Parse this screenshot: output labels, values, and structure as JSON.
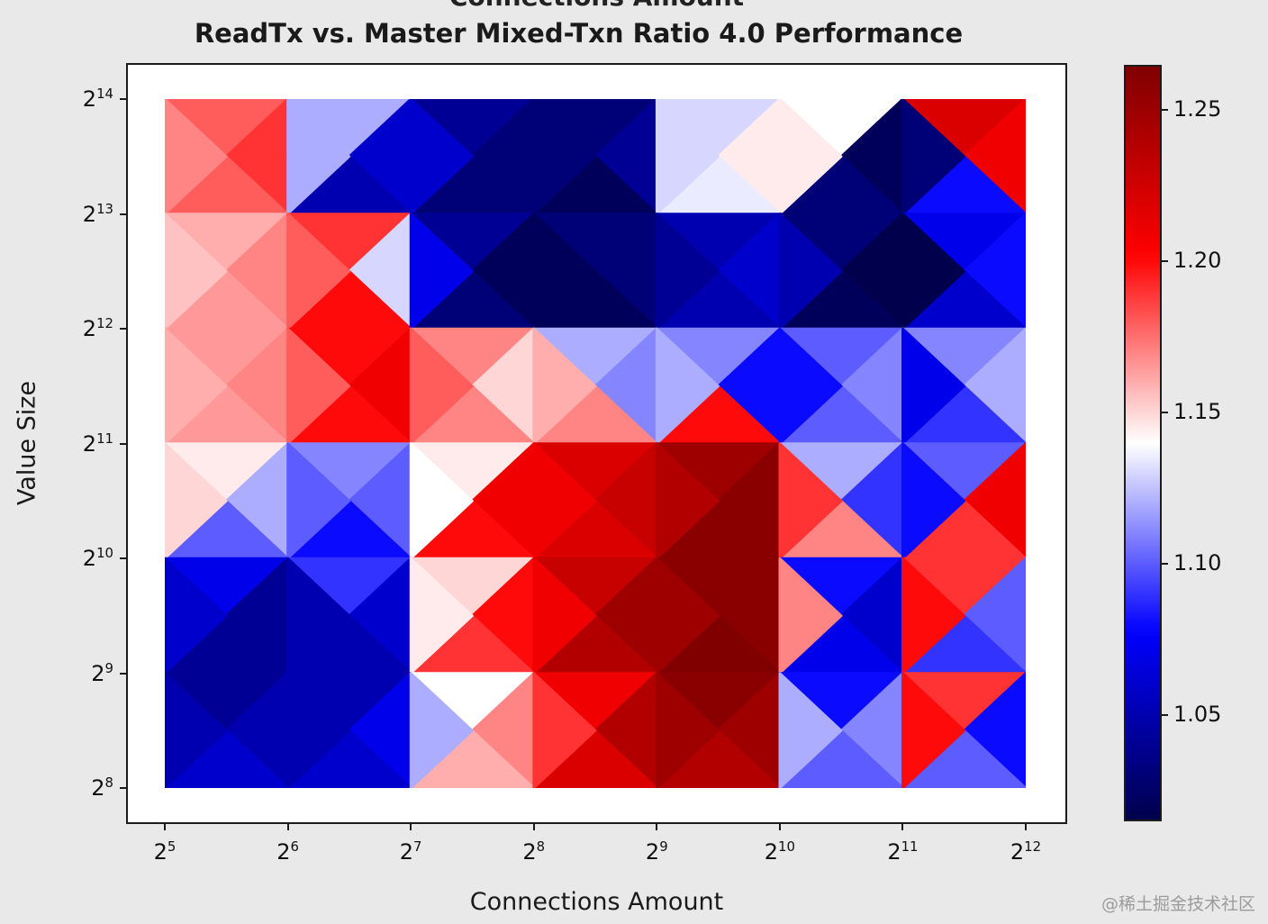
{
  "figure": {
    "background": "#e9e9e9"
  },
  "watermark": {
    "text": "@稀土掘金技术社区"
  },
  "chart_data": {
    "type": "heatmap",
    "subtype": "triangulated-mesh",
    "title": "ReadTx vs. Master Mixed-Txn Ratio 4.0 Performance",
    "top_clipped_text": "Connections Amount",
    "xlabel": "Connections Amount",
    "ylabel": "Value Size",
    "tick_base": "2",
    "x_tick_exponents": [
      "5",
      "6",
      "7",
      "8",
      "9",
      "10",
      "11",
      "12"
    ],
    "y_tick_exponents": [
      "14",
      "13",
      "12",
      "11",
      "10",
      "9",
      "8"
    ],
    "x_tick_labels": [
      "2⁵",
      "2⁶",
      "2⁷",
      "2⁸",
      "2⁹",
      "2¹⁰",
      "2¹¹",
      "2¹²"
    ],
    "y_tick_labels": [
      "2¹⁴",
      "2¹³",
      "2¹²",
      "2¹¹",
      "2¹⁰",
      "2⁹",
      "2⁸"
    ],
    "colormap": "seismic",
    "vmin": 1.015,
    "vmax": 1.265,
    "colorbar_ticks": [
      1.25,
      1.2,
      1.15,
      1.1,
      1.05
    ],
    "colorbar_tick_labels": [
      "1.25",
      "1.20",
      "1.15",
      "1.10",
      "1.05"
    ],
    "grid": false,
    "legend": "colorbar-right",
    "cells_note": "rows top-to-bottom (y 2^13..2^14 band first, 2^8..2^9 band last), cols left-to-right (x 2^5..2^12); each cell = [top, right, bottom, left] triangle ratio values",
    "cells": [
      [
        [
          1.18,
          1.19,
          1.18,
          1.17
        ],
        [
          1.12,
          1.06,
          1.05,
          1.12
        ],
        [
          1.04,
          1.03,
          1.03,
          1.06
        ],
        [
          1.03,
          1.04,
          1.02,
          1.03
        ],
        [
          1.13,
          1.145,
          1.135,
          1.13
        ],
        [
          1.14,
          1.02,
          1.03,
          1.145
        ],
        [
          1.22,
          1.21,
          1.08,
          1.03
        ]
      ],
      [
        [
          1.16,
          1.17,
          1.165,
          1.155
        ],
        [
          1.19,
          1.13,
          1.2,
          1.18
        ],
        [
          1.04,
          1.02,
          1.03,
          1.07
        ],
        [
          1.03,
          1.03,
          1.02,
          1.02
        ],
        [
          1.05,
          1.06,
          1.05,
          1.04
        ],
        [
          1.03,
          1.015,
          1.02,
          1.05
        ],
        [
          1.07,
          1.08,
          1.06,
          1.015
        ]
      ],
      [
        [
          1.165,
          1.17,
          1.165,
          1.16
        ],
        [
          1.2,
          1.21,
          1.2,
          1.18
        ],
        [
          1.17,
          1.15,
          1.17,
          1.18
        ],
        [
          1.12,
          1.11,
          1.17,
          1.16
        ],
        [
          1.11,
          1.08,
          1.2,
          1.12
        ],
        [
          1.1,
          1.11,
          1.1,
          1.08
        ],
        [
          1.11,
          1.12,
          1.09,
          1.07
        ]
      ],
      [
        [
          1.145,
          1.12,
          1.1,
          1.15
        ],
        [
          1.11,
          1.1,
          1.08,
          1.1
        ],
        [
          1.145,
          1.21,
          1.2,
          1.14
        ],
        [
          1.22,
          1.23,
          1.22,
          1.21
        ],
        [
          1.25,
          1.26,
          1.26,
          1.24
        ],
        [
          1.12,
          1.09,
          1.17,
          1.19
        ],
        [
          1.1,
          1.21,
          1.19,
          1.08
        ]
      ],
      [
        [
          1.07,
          1.04,
          1.04,
          1.06
        ],
        [
          1.09,
          1.06,
          1.05,
          1.05
        ],
        [
          1.15,
          1.2,
          1.19,
          1.145
        ],
        [
          1.23,
          1.25,
          1.24,
          1.21
        ],
        [
          1.26,
          1.26,
          1.27,
          1.25
        ],
        [
          1.08,
          1.06,
          1.07,
          1.17
        ],
        [
          1.19,
          1.1,
          1.09,
          1.2
        ]
      ],
      [
        [
          1.04,
          1.05,
          1.06,
          1.05
        ],
        [
          1.05,
          1.07,
          1.06,
          1.05
        ],
        [
          1.14,
          1.17,
          1.16,
          1.12
        ],
        [
          1.21,
          1.24,
          1.22,
          1.19
        ],
        [
          1.26,
          1.25,
          1.24,
          1.25
        ],
        [
          1.08,
          1.11,
          1.1,
          1.12
        ],
        [
          1.19,
          1.08,
          1.1,
          1.2
        ]
      ]
    ]
  }
}
